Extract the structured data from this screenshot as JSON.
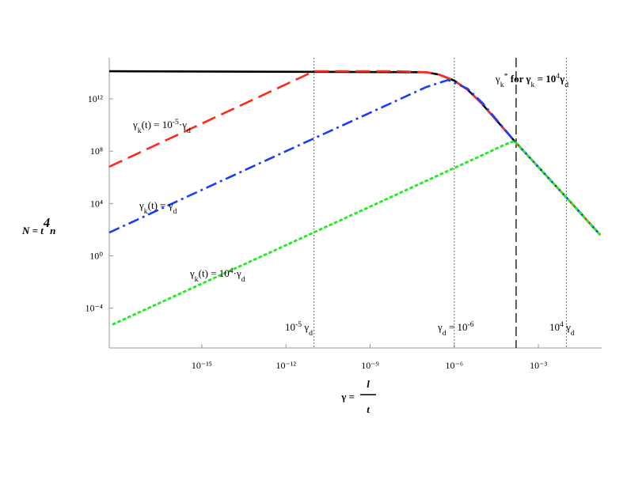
{
  "chart_data": {
    "type": "line",
    "log_x": true,
    "log_y": true,
    "xlim": [
      5e-19,
      0.18
    ],
    "ylim": [
      9e-08,
      1400000000000000.0
    ],
    "xticks": [
      {
        "value": 1e-15,
        "label": "10⁻¹⁵"
      },
      {
        "value": 1e-12,
        "label": "10⁻¹²"
      },
      {
        "value": 1e-09,
        "label": "10⁻⁹"
      },
      {
        "value": 1e-06,
        "label": "10⁻⁶"
      },
      {
        "value": 0.001,
        "label": "10⁻³"
      }
    ],
    "yticks": [
      {
        "value": 0.0001,
        "label": "10⁻⁴"
      },
      {
        "value": 1,
        "label": "10⁰"
      },
      {
        "value": 10000.0,
        "label": "10⁴"
      },
      {
        "value": 100000000.0,
        "label": "10⁸"
      },
      {
        "value": 1000000000000.0,
        "label": "10¹²"
      }
    ],
    "xlabel": {
      "lhs": "γ =",
      "num": "l",
      "den": "t"
    },
    "ylabel": [
      [
        "N = t",
        ""
      ],
      [
        "4",
        "sup"
      ],
      [
        "n",
        ""
      ]
    ],
    "series": [
      {
        "color": "#000000",
        "dash": "solid",
        "x": [
          5e-19,
          1e-07,
          3e-07,
          1e-06,
          3e-06,
          1e-05,
          0.00014,
          0.014,
          0.16
        ],
        "values": [
          130000000000000.0,
          110000000000000.0,
          70000000000000.0,
          25000000000000.0,
          5000000000000.0,
          400000000000.0,
          600000000.0,
          13000.0,
          40
        ]
      },
      {
        "color": "#ff2a1a",
        "dash": "dashed",
        "x": [
          5e-19,
          1e-11,
          1e-08,
          1e-07,
          3e-07,
          1e-06,
          3e-06,
          1e-05,
          0.00014,
          0.014,
          0.16
        ],
        "values": [
          6500000.0,
          130000000000000.0,
          130000000000000.0,
          110000000000000.0,
          70000000000000.0,
          25000000000000.0,
          5000000000000.0,
          400000000000.0,
          600000000.0,
          13000.0,
          40
        ]
      },
      {
        "color": "#1a3cff",
        "dash": "dashdot",
        "x": [
          5e-19,
          1e-12,
          1e-07,
          6e-07,
          3e-06,
          1e-05,
          0.00014,
          0.014,
          0.16
        ],
        "values": [
          60,
          100000000.0,
          8000000000000.0,
          28000000000000.0,
          6000000000000.0,
          500000000000.0,
          600000000.0,
          13000.0,
          40
        ]
      },
      {
        "color": "#22ee22",
        "dash": "dotted",
        "x": [
          7e-19,
          1e-10,
          1e-05,
          6e-05,
          0.00014,
          0.014,
          0.16
        ],
        "values": [
          6e-06,
          600,
          50000000.0,
          300000000.0,
          600000000.0,
          13000.0,
          40
        ]
      }
    ],
    "vlines": [
      {
        "x": 1e-11,
        "style": "dotted"
      },
      {
        "x": 1e-06,
        "style": "dotted"
      },
      {
        "x": 0.01,
        "style": "dotted"
      },
      {
        "x": 0.00016,
        "style": "dashed"
      }
    ],
    "annotations": [
      [
        [
          "γ",
          ""
        ],
        [
          "k",
          "sub"
        ],
        [
          "(t) = 10",
          ""
        ],
        [
          "-5",
          "sup"
        ],
        [
          "·γ",
          ""
        ],
        [
          "d",
          "sub"
        ]
      ],
      [
        [
          "γ",
          ""
        ],
        [
          "k",
          "sub"
        ],
        [
          "(t) = γ",
          ""
        ],
        [
          "d",
          "sub"
        ]
      ],
      [
        [
          "γ",
          ""
        ],
        [
          "k",
          "sub"
        ],
        [
          "(t) = 10",
          ""
        ],
        [
          "4",
          "sup"
        ],
        [
          "·γ",
          ""
        ],
        [
          "d",
          "sub"
        ]
      ],
      [
        [
          "10",
          ""
        ],
        [
          "-5",
          "sup"
        ],
        [
          " γ",
          ""
        ],
        [
          "d",
          "sub"
        ]
      ],
      [
        [
          "γ",
          ""
        ],
        [
          "d",
          "sub"
        ],
        [
          " = 10",
          ""
        ],
        [
          "-6",
          "sup"
        ]
      ],
      [
        [
          "10",
          ""
        ],
        [
          "4",
          "sup"
        ],
        [
          " γ",
          ""
        ],
        [
          "d",
          "sub"
        ]
      ],
      [
        [
          "γ",
          ""
        ],
        [
          "k",
          "sub"
        ],
        [
          "*",
          "sup"
        ],
        [
          " for γ",
          "bold"
        ],
        [
          "k",
          "sub"
        ],
        [
          " = 10",
          "bold"
        ],
        [
          "4",
          "sup"
        ],
        [
          "γ",
          "bold"
        ],
        [
          "d",
          "sub"
        ]
      ]
    ]
  }
}
